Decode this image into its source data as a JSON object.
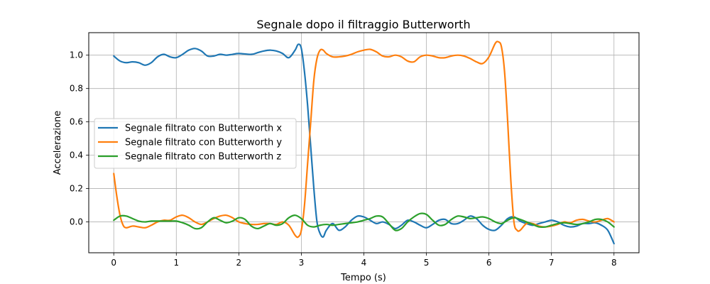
{
  "chart_data": {
    "type": "line",
    "title": "Segnale dopo il filtraggio Butterworth",
    "xlabel": "Tempo (s)",
    "ylabel": "Accelerazione",
    "xlim": [
      -0.4,
      8.4
    ],
    "ylim": [
      -0.185,
      1.135
    ],
    "xticks": [
      0,
      1,
      2,
      3,
      4,
      5,
      6,
      7,
      8
    ],
    "xtick_labels": [
      "0",
      "1",
      "2",
      "3",
      "4",
      "5",
      "6",
      "7",
      "8"
    ],
    "yticks": [
      0.0,
      0.2,
      0.4,
      0.6,
      0.8,
      1.0
    ],
    "ytick_labels": [
      "0.0",
      "0.2",
      "0.4",
      "0.6",
      "0.8",
      "1.0"
    ],
    "grid": true,
    "legend_position": "center-left",
    "series": [
      {
        "name": "Segnale filtrato con Butterworth x",
        "color": "#1f77b4",
        "points": [
          [
            0.0,
            0.995
          ],
          [
            0.1,
            0.965
          ],
          [
            0.2,
            0.955
          ],
          [
            0.3,
            0.96
          ],
          [
            0.4,
            0.955
          ],
          [
            0.5,
            0.94
          ],
          [
            0.6,
            0.955
          ],
          [
            0.7,
            0.99
          ],
          [
            0.8,
            1.005
          ],
          [
            0.9,
            0.99
          ],
          [
            1.0,
            0.985
          ],
          [
            1.1,
            1.005
          ],
          [
            1.2,
            1.03
          ],
          [
            1.3,
            1.04
          ],
          [
            1.4,
            1.025
          ],
          [
            1.5,
            0.995
          ],
          [
            1.6,
            0.995
          ],
          [
            1.7,
            1.005
          ],
          [
            1.8,
            1.0
          ],
          [
            1.9,
            1.005
          ],
          [
            2.0,
            1.01
          ],
          [
            2.2,
            1.005
          ],
          [
            2.3,
            1.015
          ],
          [
            2.4,
            1.025
          ],
          [
            2.5,
            1.03
          ],
          [
            2.6,
            1.025
          ],
          [
            2.7,
            1.01
          ],
          [
            2.8,
            0.985
          ],
          [
            2.9,
            1.03
          ],
          [
            2.95,
            1.065
          ],
          [
            3.0,
            1.04
          ],
          [
            3.05,
            0.9
          ],
          [
            3.1,
            0.7
          ],
          [
            3.15,
            0.45
          ],
          [
            3.2,
            0.2
          ],
          [
            3.25,
            0.0
          ],
          [
            3.3,
            -0.07
          ],
          [
            3.35,
            -0.09
          ],
          [
            3.4,
            -0.05
          ],
          [
            3.5,
            -0.01
          ],
          [
            3.6,
            -0.05
          ],
          [
            3.7,
            -0.03
          ],
          [
            3.8,
            0.01
          ],
          [
            3.9,
            0.035
          ],
          [
            4.0,
            0.03
          ],
          [
            4.1,
            0.01
          ],
          [
            4.2,
            -0.01
          ],
          [
            4.3,
            0.0
          ],
          [
            4.4,
            -0.015
          ],
          [
            4.5,
            -0.04
          ],
          [
            4.6,
            -0.02
          ],
          [
            4.7,
            0.01
          ],
          [
            4.8,
            0.0
          ],
          [
            4.9,
            -0.02
          ],
          [
            5.0,
            -0.035
          ],
          [
            5.1,
            -0.015
          ],
          [
            5.2,
            0.01
          ],
          [
            5.3,
            0.015
          ],
          [
            5.4,
            -0.01
          ],
          [
            5.5,
            -0.01
          ],
          [
            5.6,
            0.01
          ],
          [
            5.7,
            0.035
          ],
          [
            5.8,
            0.02
          ],
          [
            5.9,
            -0.02
          ],
          [
            6.0,
            -0.045
          ],
          [
            6.1,
            -0.05
          ],
          [
            6.2,
            -0.02
          ],
          [
            6.3,
            0.02
          ],
          [
            6.4,
            0.03
          ],
          [
            6.5,
            0.005
          ],
          [
            6.6,
            -0.01
          ],
          [
            6.7,
            -0.02
          ],
          [
            6.8,
            -0.01
          ],
          [
            6.9,
            0.0
          ],
          [
            7.0,
            0.01
          ],
          [
            7.1,
            0.0
          ],
          [
            7.2,
            -0.02
          ],
          [
            7.3,
            -0.03
          ],
          [
            7.4,
            -0.025
          ],
          [
            7.5,
            -0.01
          ],
          [
            7.6,
            -0.01
          ],
          [
            7.7,
            -0.005
          ],
          [
            7.8,
            -0.02
          ],
          [
            7.9,
            -0.05
          ],
          [
            8.0,
            -0.13
          ]
        ]
      },
      {
        "name": "Segnale filtrato con Butterworth y",
        "color": "#ff7f0e",
        "points": [
          [
            0.0,
            0.29
          ],
          [
            0.05,
            0.15
          ],
          [
            0.1,
            0.04
          ],
          [
            0.15,
            -0.02
          ],
          [
            0.2,
            -0.035
          ],
          [
            0.3,
            -0.025
          ],
          [
            0.4,
            -0.03
          ],
          [
            0.5,
            -0.035
          ],
          [
            0.6,
            -0.02
          ],
          [
            0.7,
            0.0
          ],
          [
            0.8,
            0.01
          ],
          [
            0.9,
            0.01
          ],
          [
            1.0,
            0.03
          ],
          [
            1.1,
            0.04
          ],
          [
            1.2,
            0.025
          ],
          [
            1.3,
            0.0
          ],
          [
            1.4,
            -0.015
          ],
          [
            1.5,
            0.0
          ],
          [
            1.6,
            0.02
          ],
          [
            1.7,
            0.035
          ],
          [
            1.8,
            0.04
          ],
          [
            1.9,
            0.025
          ],
          [
            2.0,
            0.0
          ],
          [
            2.1,
            -0.01
          ],
          [
            2.2,
            -0.015
          ],
          [
            2.3,
            -0.015
          ],
          [
            2.4,
            -0.01
          ],
          [
            2.5,
            -0.01
          ],
          [
            2.6,
            -0.015
          ],
          [
            2.7,
            0.0
          ],
          [
            2.8,
            -0.02
          ],
          [
            2.9,
            -0.08
          ],
          [
            2.95,
            -0.09
          ],
          [
            3.0,
            -0.05
          ],
          [
            3.05,
            0.1
          ],
          [
            3.1,
            0.35
          ],
          [
            3.15,
            0.6
          ],
          [
            3.2,
            0.85
          ],
          [
            3.25,
            0.98
          ],
          [
            3.3,
            1.03
          ],
          [
            3.35,
            1.03
          ],
          [
            3.4,
            1.01
          ],
          [
            3.5,
            0.99
          ],
          [
            3.6,
            0.99
          ],
          [
            3.7,
            0.995
          ],
          [
            3.8,
            1.005
          ],
          [
            3.9,
            1.02
          ],
          [
            4.0,
            1.03
          ],
          [
            4.1,
            1.035
          ],
          [
            4.2,
            1.02
          ],
          [
            4.3,
            0.995
          ],
          [
            4.4,
            0.99
          ],
          [
            4.5,
            1.0
          ],
          [
            4.6,
            0.99
          ],
          [
            4.7,
            0.965
          ],
          [
            4.8,
            0.96
          ],
          [
            4.9,
            0.99
          ],
          [
            5.0,
            1.0
          ],
          [
            5.1,
            0.995
          ],
          [
            5.2,
            0.985
          ],
          [
            5.3,
            0.985
          ],
          [
            5.4,
            0.995
          ],
          [
            5.5,
            1.0
          ],
          [
            5.6,
            0.995
          ],
          [
            5.7,
            0.98
          ],
          [
            5.8,
            0.96
          ],
          [
            5.9,
            0.95
          ],
          [
            6.0,
            0.99
          ],
          [
            6.1,
            1.07
          ],
          [
            6.15,
            1.08
          ],
          [
            6.2,
            1.05
          ],
          [
            6.25,
            0.9
          ],
          [
            6.3,
            0.6
          ],
          [
            6.35,
            0.25
          ],
          [
            6.4,
            0.0
          ],
          [
            6.45,
            -0.05
          ],
          [
            6.5,
            -0.05
          ],
          [
            6.6,
            -0.01
          ],
          [
            6.7,
            -0.01
          ],
          [
            6.8,
            -0.025
          ],
          [
            6.9,
            -0.03
          ],
          [
            7.0,
            -0.025
          ],
          [
            7.1,
            -0.015
          ],
          [
            7.2,
            0.0
          ],
          [
            7.3,
            -0.005
          ],
          [
            7.4,
            0.01
          ],
          [
            7.5,
            0.015
          ],
          [
            7.6,
            0.005
          ],
          [
            7.7,
            0.0
          ],
          [
            7.8,
            0.01
          ],
          [
            7.9,
            0.02
          ],
          [
            8.0,
            0.0
          ]
        ]
      },
      {
        "name": "Segnale filtrato con Butterworth z",
        "color": "#2ca02c",
        "points": [
          [
            0.0,
            0.01
          ],
          [
            0.1,
            0.035
          ],
          [
            0.2,
            0.035
          ],
          [
            0.3,
            0.02
          ],
          [
            0.4,
            0.005
          ],
          [
            0.5,
            0.0
          ],
          [
            0.6,
            0.005
          ],
          [
            0.7,
            0.005
          ],
          [
            0.8,
            0.005
          ],
          [
            0.9,
            0.005
          ],
          [
            1.0,
            0.005
          ],
          [
            1.1,
            -0.005
          ],
          [
            1.2,
            -0.02
          ],
          [
            1.3,
            -0.04
          ],
          [
            1.4,
            -0.035
          ],
          [
            1.5,
            0.0
          ],
          [
            1.6,
            0.025
          ],
          [
            1.7,
            0.01
          ],
          [
            1.8,
            -0.005
          ],
          [
            1.9,
            0.005
          ],
          [
            2.0,
            0.025
          ],
          [
            2.1,
            0.015
          ],
          [
            2.2,
            -0.025
          ],
          [
            2.3,
            -0.04
          ],
          [
            2.4,
            -0.025
          ],
          [
            2.5,
            -0.01
          ],
          [
            2.6,
            -0.02
          ],
          [
            2.7,
            -0.01
          ],
          [
            2.8,
            0.025
          ],
          [
            2.9,
            0.04
          ],
          [
            3.0,
            0.02
          ],
          [
            3.1,
            -0.02
          ],
          [
            3.2,
            -0.03
          ],
          [
            3.3,
            -0.02
          ],
          [
            3.4,
            -0.015
          ],
          [
            3.5,
            -0.02
          ],
          [
            3.6,
            -0.015
          ],
          [
            3.7,
            -0.01
          ],
          [
            3.8,
            -0.005
          ],
          [
            3.9,
            0.0
          ],
          [
            4.0,
            0.01
          ],
          [
            4.1,
            0.02
          ],
          [
            4.2,
            0.035
          ],
          [
            4.3,
            0.03
          ],
          [
            4.4,
            -0.01
          ],
          [
            4.5,
            -0.05
          ],
          [
            4.6,
            -0.04
          ],
          [
            4.7,
            0.0
          ],
          [
            4.8,
            0.03
          ],
          [
            4.9,
            0.05
          ],
          [
            5.0,
            0.045
          ],
          [
            5.1,
            0.01
          ],
          [
            5.2,
            -0.02
          ],
          [
            5.3,
            -0.015
          ],
          [
            5.4,
            0.015
          ],
          [
            5.5,
            0.035
          ],
          [
            5.6,
            0.03
          ],
          [
            5.7,
            0.02
          ],
          [
            5.8,
            0.025
          ],
          [
            5.9,
            0.03
          ],
          [
            6.0,
            0.02
          ],
          [
            6.1,
            0.0
          ],
          [
            6.2,
            -0.01
          ],
          [
            6.3,
            0.01
          ],
          [
            6.4,
            0.025
          ],
          [
            6.5,
            0.015
          ],
          [
            6.6,
            0.0
          ],
          [
            6.7,
            -0.015
          ],
          [
            6.8,
            -0.03
          ],
          [
            6.9,
            -0.03
          ],
          [
            7.0,
            -0.02
          ],
          [
            7.1,
            -0.01
          ],
          [
            7.2,
            -0.005
          ],
          [
            7.3,
            -0.01
          ],
          [
            7.4,
            -0.015
          ],
          [
            7.5,
            -0.01
          ],
          [
            7.6,
            0.0
          ],
          [
            7.7,
            0.015
          ],
          [
            7.8,
            0.015
          ],
          [
            7.9,
            0.0
          ],
          [
            8.0,
            -0.03
          ]
        ]
      }
    ]
  }
}
